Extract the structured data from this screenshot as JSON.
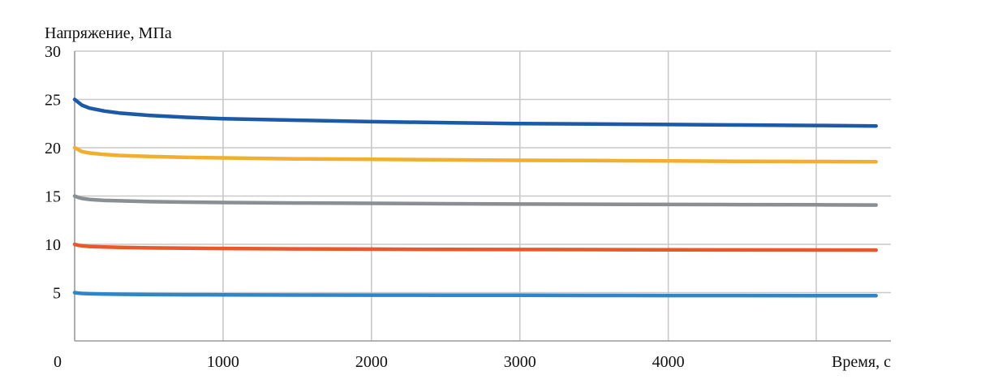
{
  "chart_data": {
    "type": "line",
    "title": "",
    "ylabel": "Напряжение, МПа",
    "xlabel": "Время, с",
    "xlim": [
      0,
      5500
    ],
    "ylim": [
      0,
      30
    ],
    "x_ticks": [
      1000,
      2000,
      3000,
      4000
    ],
    "y_ticks": [
      5,
      10,
      15,
      20,
      25,
      30
    ],
    "origin_label": "0",
    "grid": true,
    "legend": "none",
    "x": [
      0,
      25,
      50,
      100,
      200,
      300,
      500,
      750,
      1000,
      1500,
      2000,
      2500,
      3000,
      3500,
      4000,
      4500,
      5000,
      5400
    ],
    "series": [
      {
        "color": "#1b5aa8",
        "values": [
          25.0,
          24.7,
          24.4,
          24.1,
          23.8,
          23.6,
          23.35,
          23.15,
          23.0,
          22.85,
          22.7,
          22.6,
          22.5,
          22.45,
          22.4,
          22.35,
          22.3,
          22.25
        ]
      },
      {
        "color": "#f2ae2e",
        "values": [
          20.0,
          19.8,
          19.6,
          19.45,
          19.3,
          19.2,
          19.1,
          19.0,
          18.95,
          18.85,
          18.8,
          18.75,
          18.7,
          18.67,
          18.63,
          18.6,
          18.57,
          18.55
        ]
      },
      {
        "color": "#8a8f93",
        "values": [
          15.0,
          14.85,
          14.75,
          14.65,
          14.55,
          14.5,
          14.42,
          14.37,
          14.33,
          14.28,
          14.24,
          14.2,
          14.17,
          14.15,
          14.13,
          14.11,
          14.09,
          14.07
        ]
      },
      {
        "color": "#e8582a",
        "values": [
          10.0,
          9.9,
          9.85,
          9.78,
          9.72,
          9.68,
          9.63,
          9.6,
          9.57,
          9.53,
          9.5,
          9.48,
          9.46,
          9.45,
          9.43,
          9.42,
          9.41,
          9.4
        ]
      },
      {
        "color": "#2e86c8",
        "values": [
          5.0,
          4.95,
          4.92,
          4.88,
          4.85,
          4.83,
          4.8,
          4.78,
          4.77,
          4.75,
          4.74,
          4.73,
          4.72,
          4.71,
          4.7,
          4.7,
          4.69,
          4.68
        ]
      }
    ]
  }
}
